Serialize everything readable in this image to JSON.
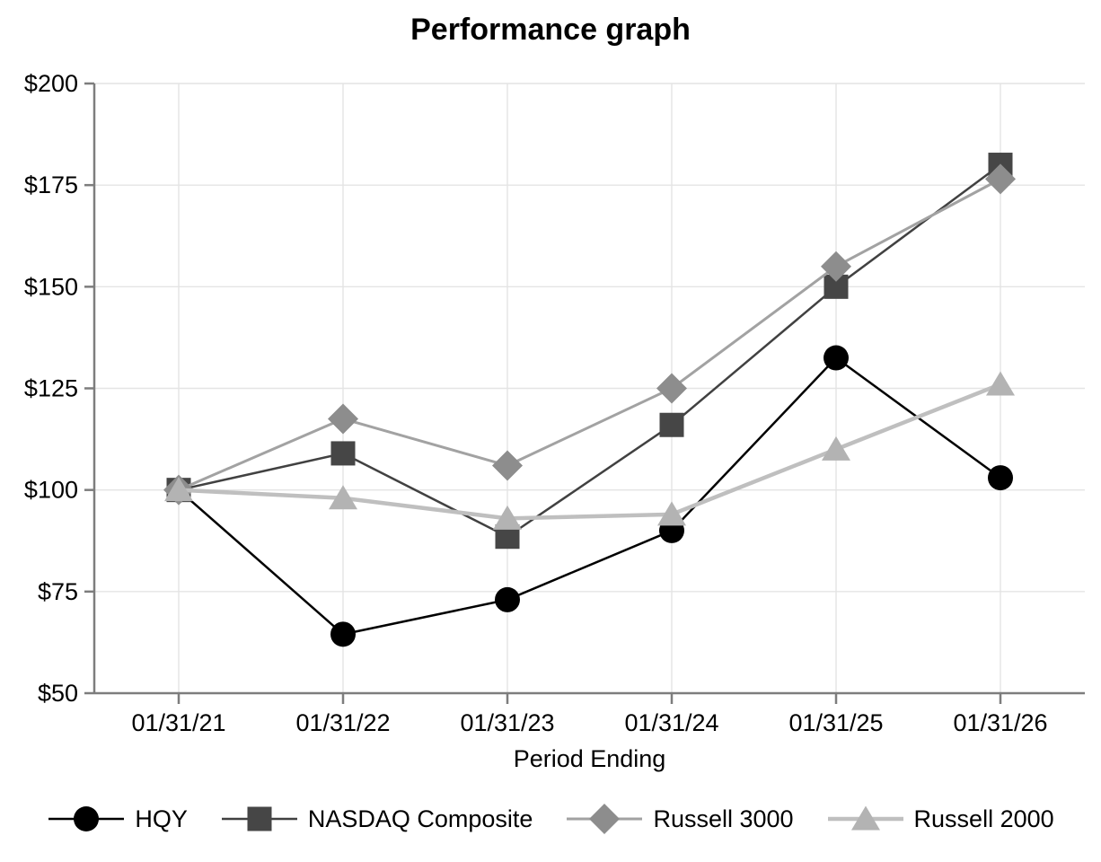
{
  "chart_data": {
    "type": "line",
    "title": "Performance graph",
    "xlabel": "Period Ending",
    "ylabel": "",
    "categories": [
      "01/31/21",
      "01/31/22",
      "01/31/23",
      "01/31/24",
      "01/31/25",
      "01/31/26"
    ],
    "ylim": [
      50,
      200
    ],
    "y_ticks": [
      {
        "value": 200,
        "label": "$200"
      },
      {
        "value": 175,
        "label": "$175"
      },
      {
        "value": 150,
        "label": "$150"
      },
      {
        "value": 125,
        "label": "$125"
      },
      {
        "value": 100,
        "label": "$100"
      },
      {
        "value": 75,
        "label": "$75"
      },
      {
        "value": 50,
        "label": "$50"
      }
    ],
    "grid": true,
    "legend_position": "bottom",
    "series": [
      {
        "name": "HQY",
        "marker": "circle",
        "color": "#000000",
        "line_color": "#000000",
        "line_width": 2.5,
        "values": [
          100,
          64.5,
          73,
          90,
          132.5,
          103
        ]
      },
      {
        "name": "NASDAQ Composite",
        "marker": "square",
        "color": "#464646",
        "line_color": "#414141",
        "line_width": 2.5,
        "values": [
          100,
          109,
          88.5,
          116,
          150,
          180
        ]
      },
      {
        "name": "Russell 3000",
        "marker": "diamond",
        "color": "#8d8d8d",
        "line_color": "#a2a2a2",
        "line_width": 3,
        "values": [
          100,
          117.5,
          106,
          125,
          155,
          176.5
        ]
      },
      {
        "name": "Russell 2000",
        "marker": "triangle",
        "color": "#b3b3b3",
        "line_color": "#bfbfbf",
        "line_width": 4.5,
        "values": [
          100,
          98,
          93,
          94,
          110,
          126
        ]
      }
    ],
    "colors": {
      "grid": "#e4e4e4",
      "axis": "#7d7d7d",
      "text": "#000000",
      "background": "#ffffff"
    }
  }
}
